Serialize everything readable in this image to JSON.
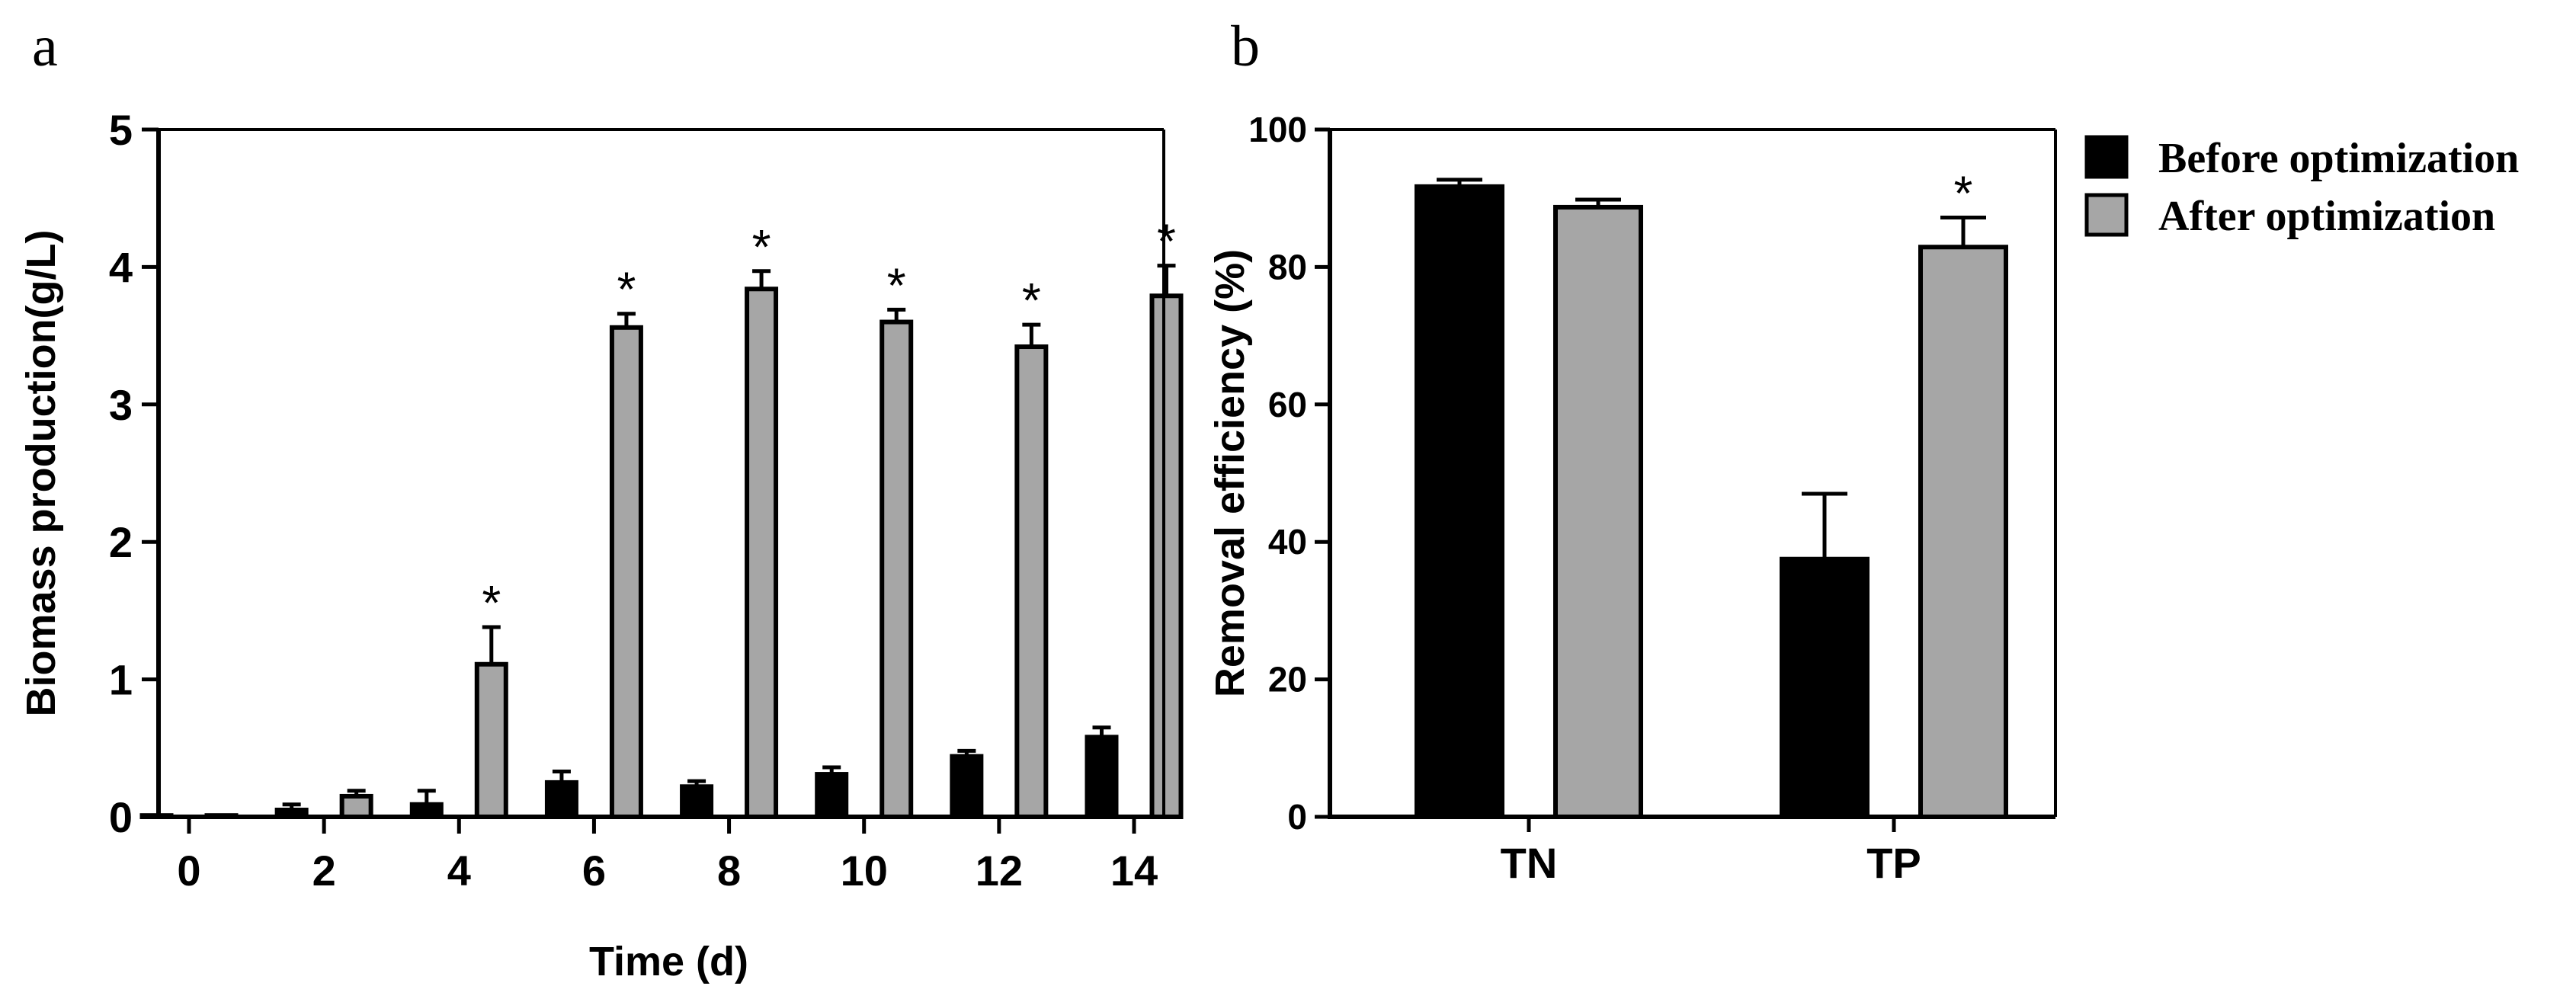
{
  "panels": {
    "a_label": "a",
    "b_label": "b"
  },
  "colors": {
    "before": "#000000",
    "after": "#a6a6a6",
    "outline": "#000000"
  },
  "chart_data": [
    {
      "type": "bar",
      "xlabel": "Time (d)",
      "ylabel": "Biomass production(g/L)",
      "ylim": [
        0,
        5
      ],
      "yticks": [
        "0",
        "1",
        "2",
        "3",
        "4",
        "5"
      ],
      "categories": [
        "0",
        "2",
        "4",
        "6",
        "8",
        "10",
        "12",
        "14"
      ],
      "series": [
        {
          "name": "Before optimization",
          "values": [
            0.01,
            0.05,
            0.09,
            0.25,
            0.22,
            0.31,
            0.44,
            0.58
          ],
          "errors": [
            0,
            0.04,
            0.1,
            0.08,
            0.04,
            0.05,
            0.04,
            0.07
          ]
        },
        {
          "name": "After optimization",
          "values": [
            0.01,
            0.15,
            1.11,
            3.56,
            3.84,
            3.6,
            3.42,
            3.79
          ],
          "errors": [
            0,
            0.04,
            0.27,
            0.1,
            0.13,
            0.09,
            0.16,
            0.22
          ]
        }
      ],
      "significance": [
        "",
        "",
        "*",
        "*",
        "*",
        "*",
        "*",
        "*"
      ]
    },
    {
      "type": "bar",
      "xlabel": "",
      "ylabel": "Removal efficiency (%)",
      "ylim": [
        0,
        100
      ],
      "yticks": [
        "0",
        "20",
        "40",
        "60",
        "80",
        "100"
      ],
      "categories": [
        "TN",
        "TP"
      ],
      "series": [
        {
          "name": "Before optimization",
          "values": [
            91.7,
            37.5
          ],
          "errors": [
            1.0,
            9.5
          ]
        },
        {
          "name": "After optimization",
          "values": [
            88.7,
            82.9
          ],
          "errors": [
            1.1,
            4.3
          ]
        }
      ],
      "significance": [
        "",
        "*"
      ],
      "legend": {
        "position": "top-right",
        "entries": [
          "Before optimization",
          "After optimization"
        ]
      }
    }
  ]
}
